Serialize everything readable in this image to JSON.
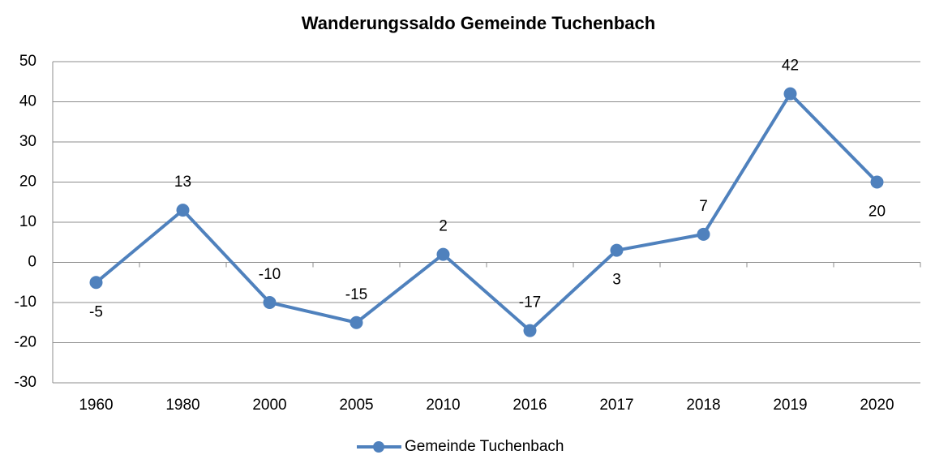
{
  "chart_data": {
    "type": "line",
    "title": "Wanderungssaldo Gemeinde Tuchenbach",
    "categories": [
      "1960",
      "1980",
      "2000",
      "2005",
      "2010",
      "2016",
      "2017",
      "2018",
      "2019",
      "2020"
    ],
    "series": [
      {
        "name": "Gemeinde Tuchenbach",
        "color": "#4f81bd",
        "values": [
          -5,
          13,
          -10,
          -15,
          2,
          -17,
          3,
          7,
          42,
          20
        ]
      }
    ],
    "ylim": [
      -30,
      50
    ],
    "yticks": [
      -30,
      -20,
      -10,
      0,
      10,
      20,
      30,
      40,
      50
    ],
    "grid": true,
    "legend": "bottom"
  }
}
